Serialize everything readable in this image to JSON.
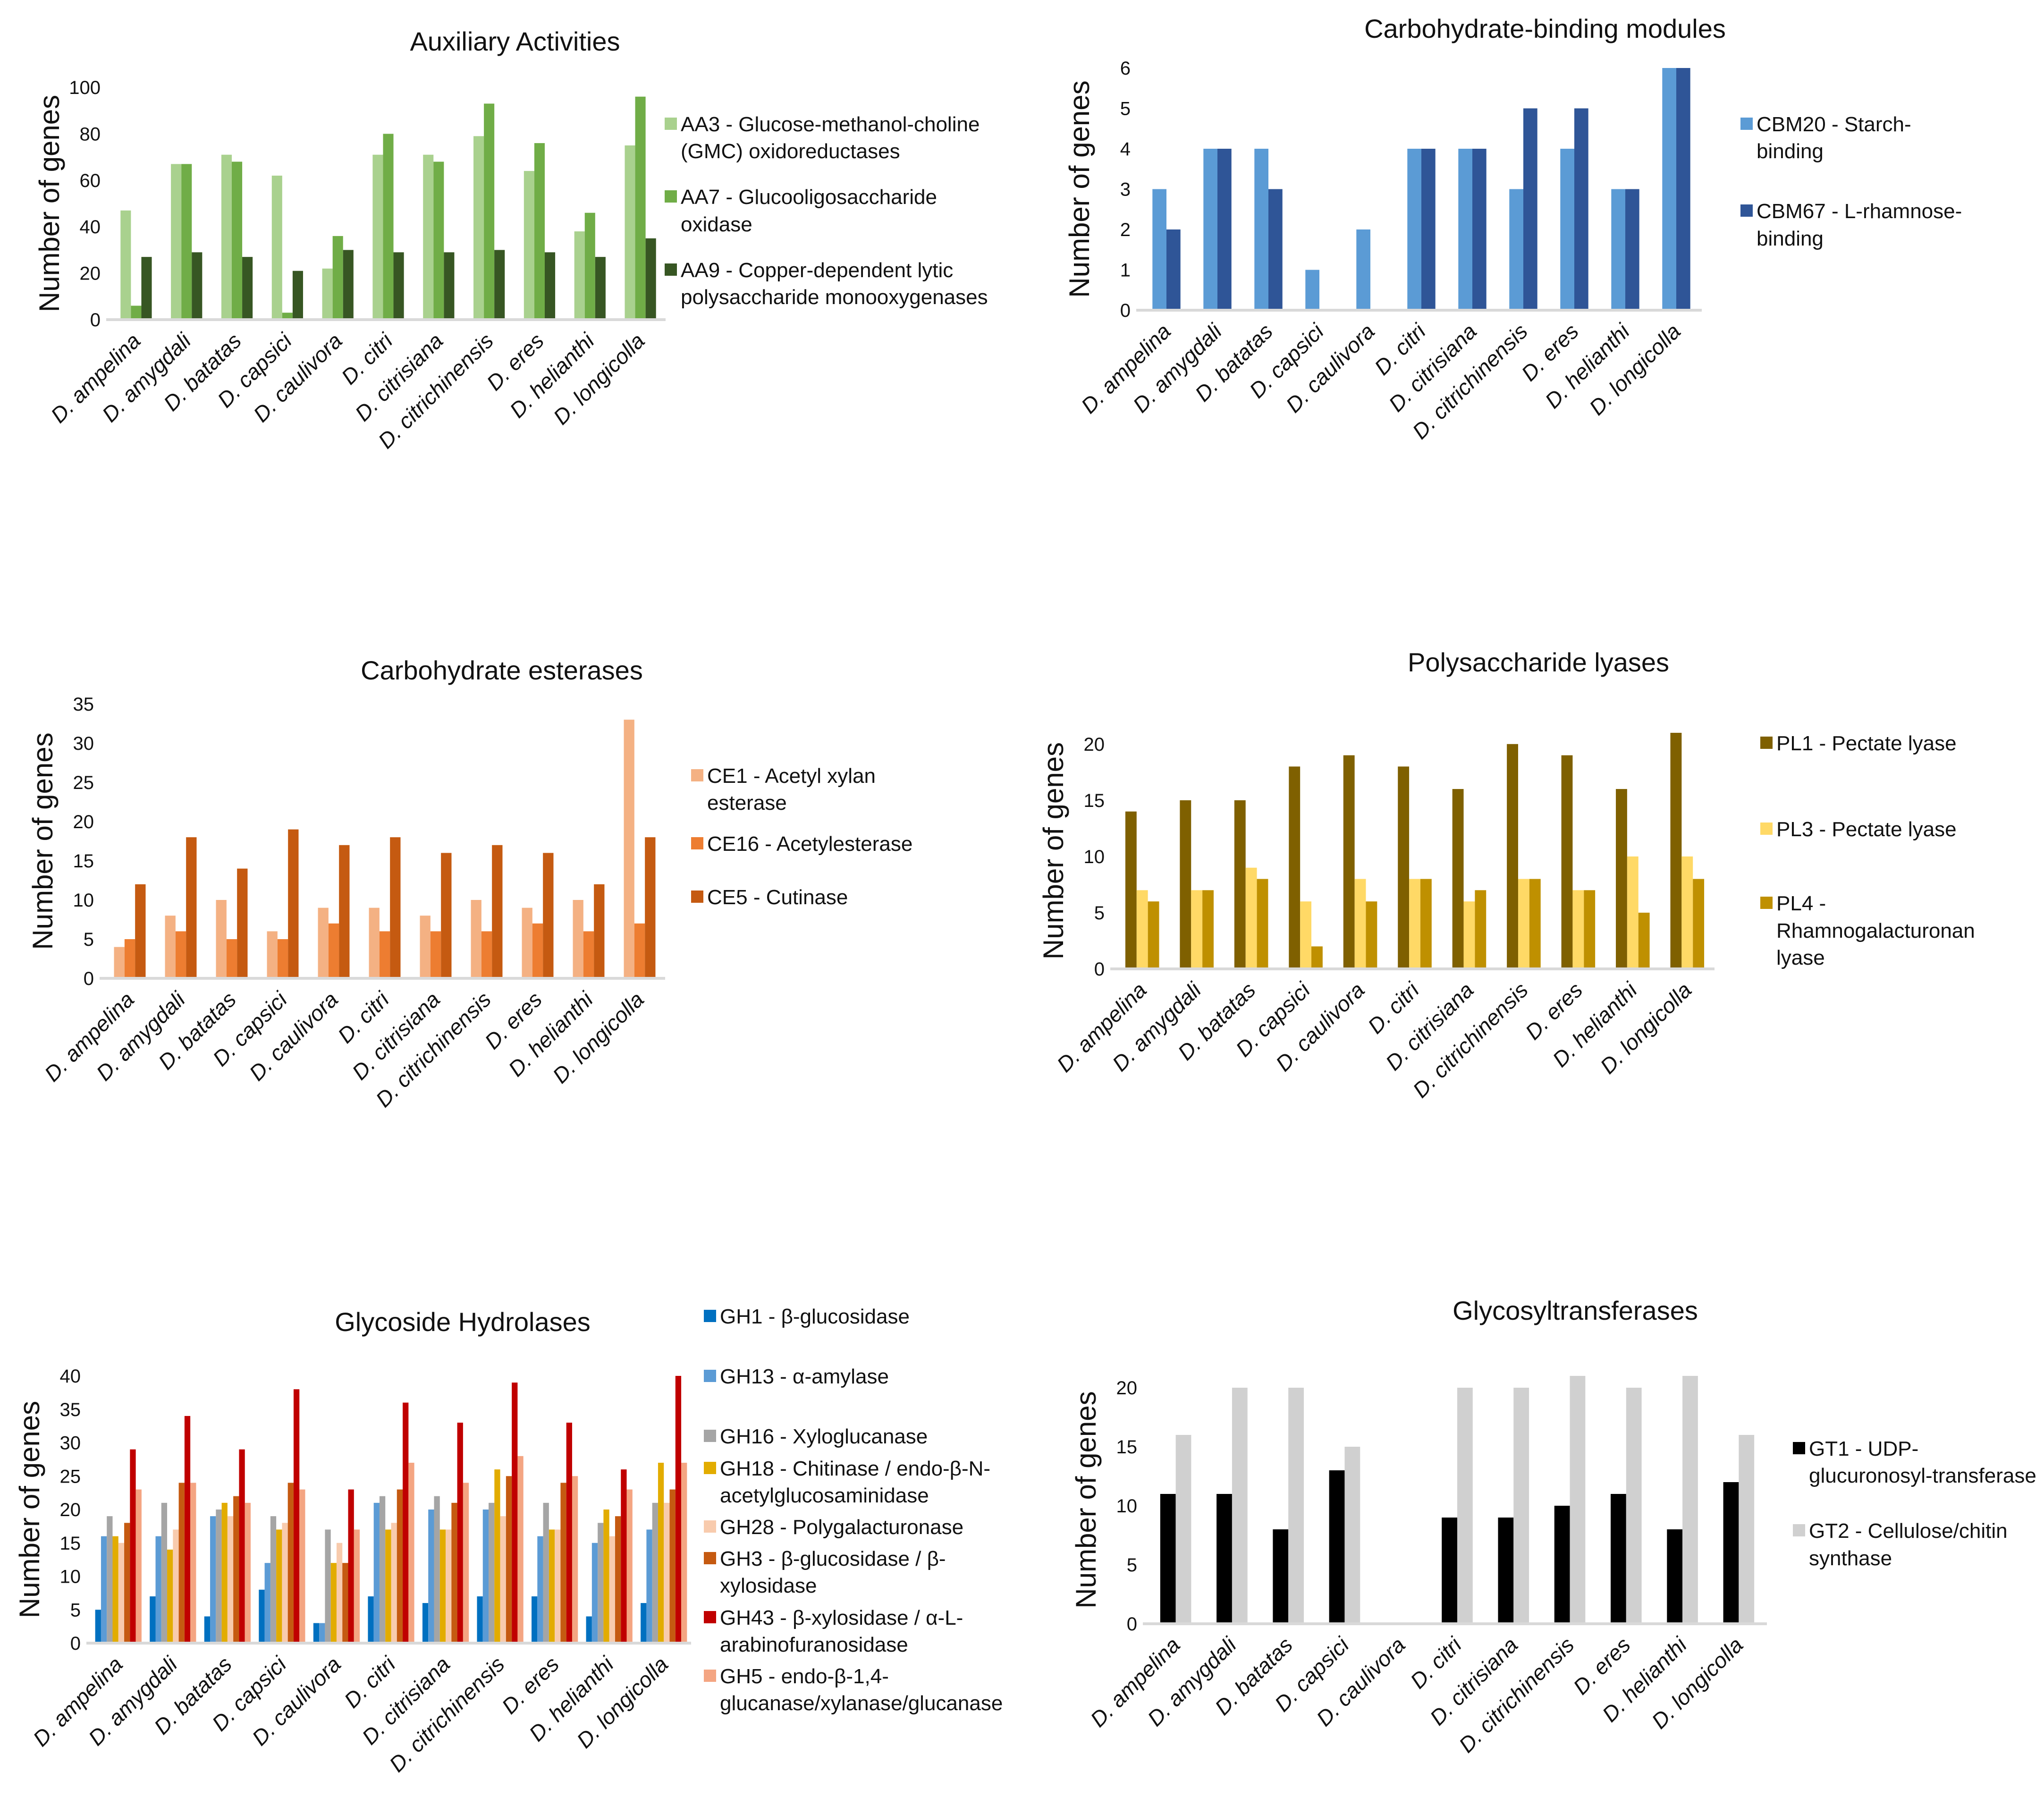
{
  "chart_data": [
    {
      "type": "bar",
      "title": "Auxiliary Activities",
      "ylabel": "Number of genes",
      "ylim": [
        0,
        100
      ],
      "yticks": [
        0,
        20,
        40,
        60,
        80,
        100
      ],
      "categories": [
        "D. ampelina",
        "D. amygdali",
        "D. batatas",
        "D. capsici",
        "D. caulivora",
        "D. citri",
        "D. citrisiana",
        "D. citrichinensis",
        "D. eres",
        "D. helianthi",
        "D. longicolla"
      ],
      "series": [
        {
          "name": "AA3 - Glucose-methanol-choline (GMC) oxidoreductases",
          "color": "#a9d18e",
          "values": [
            47,
            67,
            71,
            62,
            22,
            71,
            71,
            79,
            64,
            38,
            75
          ]
        },
        {
          "name": "AA7 - Glucooligosaccharide oxidase",
          "color": "#70ad47",
          "values": [
            6,
            67,
            68,
            3,
            36,
            80,
            68,
            93,
            76,
            46,
            96
          ]
        },
        {
          "name": "AA9 - Copper-dependent lytic polysaccharide monooxygenases",
          "color": "#375623",
          "values": [
            27,
            29,
            27,
            21,
            30,
            29,
            29,
            30,
            29,
            27,
            35
          ]
        }
      ],
      "legend": "right"
    },
    {
      "type": "bar",
      "title": "Carbohydrate-binding modules",
      "ylabel": "Number of genes",
      "ylim": [
        0,
        6
      ],
      "yticks": [
        0,
        1,
        2,
        3,
        4,
        5,
        6
      ],
      "categories": [
        "D. ampelina",
        "D. amygdali",
        "D. batatas",
        "D. capsici",
        "D. caulivora",
        "D. citri",
        "D. citrisiana",
        "D. citrichinensis",
        "D. eres",
        "D. helianthi",
        "D. longicolla"
      ],
      "series": [
        {
          "name": "CBM20 - Starch-binding",
          "color": "#5b9bd5",
          "values": [
            3,
            4,
            4,
            1,
            2,
            4,
            4,
            3,
            4,
            3,
            6
          ]
        },
        {
          "name": "CBM67 - L-rhamnose-binding",
          "color": "#2f5597",
          "values": [
            2,
            4,
            3,
            0,
            0,
            4,
            4,
            5,
            5,
            3,
            6
          ]
        }
      ],
      "legend": "right"
    },
    {
      "type": "bar",
      "title": "Carbohydrate esterases",
      "ylabel": "Number of genes",
      "ylim": [
        0,
        35
      ],
      "yticks": [
        0,
        5,
        10,
        15,
        20,
        25,
        30,
        35
      ],
      "categories": [
        "D. ampelina",
        "D. amygdali",
        "D. batatas",
        "D. capsici",
        "D. caulivora",
        "D. citri",
        "D. citrisiana",
        "D. citrichinensis",
        "D. eres",
        "D. helianthi",
        "D. longicolla"
      ],
      "series": [
        {
          "name": "CE1 - Acetyl xylan esterase",
          "color": "#f4b183",
          "values": [
            4,
            8,
            10,
            6,
            9,
            9,
            8,
            10,
            9,
            10,
            33
          ]
        },
        {
          "name": "CE16 - Acetylesterase",
          "color": "#ed7d31",
          "values": [
            5,
            6,
            5,
            5,
            7,
            6,
            6,
            6,
            7,
            6,
            7
          ]
        },
        {
          "name": "CE5 - Cutinase",
          "color": "#c55a11",
          "values": [
            12,
            18,
            14,
            19,
            17,
            18,
            16,
            17,
            16,
            12,
            18
          ]
        }
      ],
      "legend": "right"
    },
    {
      "type": "bar",
      "title": "Polysaccharide lyases",
      "ylabel": "Number of genes",
      "ylim": [
        0,
        21
      ],
      "yticks": [
        0,
        5,
        10,
        15,
        20
      ],
      "categories": [
        "D. ampelina",
        "D. amygdali",
        "D. batatas",
        "D. capsici",
        "D. caulivora",
        "D. citri",
        "D. citrisiana",
        "D. citrichinensis",
        "D. eres",
        "D. helianthi",
        "D. longicolla"
      ],
      "series": [
        {
          "name": "PL1 - Pectate lyase",
          "color": "#7f6000",
          "values": [
            14,
            15,
            15,
            18,
            19,
            18,
            16,
            20,
            19,
            16,
            21
          ]
        },
        {
          "name": "PL3 - Pectate lyase",
          "color": "#ffd966",
          "values": [
            7,
            7,
            9,
            6,
            8,
            8,
            6,
            8,
            7,
            10,
            10
          ]
        },
        {
          "name": "PL4 - Rhamnogalacturonan lyase",
          "color": "#bf9000",
          "values": [
            6,
            7,
            8,
            2,
            6,
            8,
            7,
            8,
            7,
            5,
            8
          ]
        }
      ],
      "legend": "right"
    },
    {
      "type": "bar",
      "title": "Glycoside Hydrolases",
      "ylabel": "Number of genes",
      "ylim": [
        0,
        40
      ],
      "yticks": [
        0,
        5,
        10,
        15,
        20,
        25,
        30,
        35,
        40
      ],
      "categories": [
        "D. ampelina",
        "D. amygdali",
        "D. batatas",
        "D. capsici",
        "D. caulivora",
        "D. citri",
        "D. citrisiana",
        "D. citrichinensis",
        "D. eres",
        "D. helianthi",
        "D. longicolla"
      ],
      "series": [
        {
          "name": "GH1 - β-glucosidase",
          "color": "#0070c0",
          "values": [
            5,
            7,
            4,
            8,
            3,
            7,
            6,
            7,
            7,
            4,
            6
          ]
        },
        {
          "name": "GH13 - α-amylase",
          "color": "#5b9bd5",
          "values": [
            16,
            16,
            19,
            12,
            3,
            21,
            20,
            20,
            16,
            15,
            17
          ]
        },
        {
          "name": "GH16 - Xyloglucanase",
          "color": "#a5a5a5",
          "values": [
            19,
            21,
            20,
            19,
            17,
            22,
            22,
            21,
            21,
            18,
            21
          ]
        },
        {
          "name": "GH18 - Chitinase / endo-β-N-acetylglucosaminidase",
          "color": "#e2ac00",
          "values": [
            16,
            14,
            21,
            17,
            12,
            17,
            17,
            26,
            17,
            20,
            27
          ]
        },
        {
          "name": "GH28 - Polygalacturonase",
          "color": "#f8cbad",
          "values": [
            15,
            17,
            19,
            18,
            15,
            18,
            17,
            19,
            17,
            16,
            21
          ]
        },
        {
          "name": "GH3 - β-glucosidase / β-xylosidase",
          "color": "#c55a11",
          "values": [
            18,
            24,
            22,
            24,
            12,
            23,
            21,
            25,
            24,
            19,
            23
          ]
        },
        {
          "name": "GH43 -  β-xylosidase / α-L-arabinofuranosidase",
          "color": "#c00000",
          "values": [
            29,
            34,
            29,
            38,
            23,
            36,
            33,
            39,
            33,
            26,
            40
          ]
        },
        {
          "name": "GH5 - endo-β-1,4-glucanase/xylanase/glucanase",
          "color": "#f4a582",
          "values": [
            23,
            24,
            21,
            23,
            17,
            27,
            24,
            28,
            25,
            23,
            27
          ]
        }
      ],
      "legend": "right"
    },
    {
      "type": "bar",
      "title": "Glycosyltransferases",
      "ylabel": "Number of genes",
      "ylim": [
        0,
        21
      ],
      "yticks": [
        0,
        5,
        10,
        15,
        20
      ],
      "categories": [
        "D. ampelina",
        "D. amygdali",
        "D. batatas",
        "D. capsici",
        "D. caulivora",
        "D. citri",
        "D. citrisiana",
        "D. citrichinensis",
        "D. eres",
        "D. helianthi",
        "D. longicolla"
      ],
      "series": [
        {
          "name": "GT1 - UDP-glucuronosyl-transferase",
          "color": "#000000",
          "values": [
            11,
            11,
            8,
            13,
            0,
            9,
            9,
            10,
            11,
            8,
            12
          ]
        },
        {
          "name": "GT2 - Cellulose/chitin synthase",
          "color": "#d0d0d0",
          "values": [
            16,
            20,
            20,
            15,
            0,
            20,
            20,
            21,
            20,
            21,
            16
          ]
        }
      ],
      "legend": "right"
    }
  ]
}
